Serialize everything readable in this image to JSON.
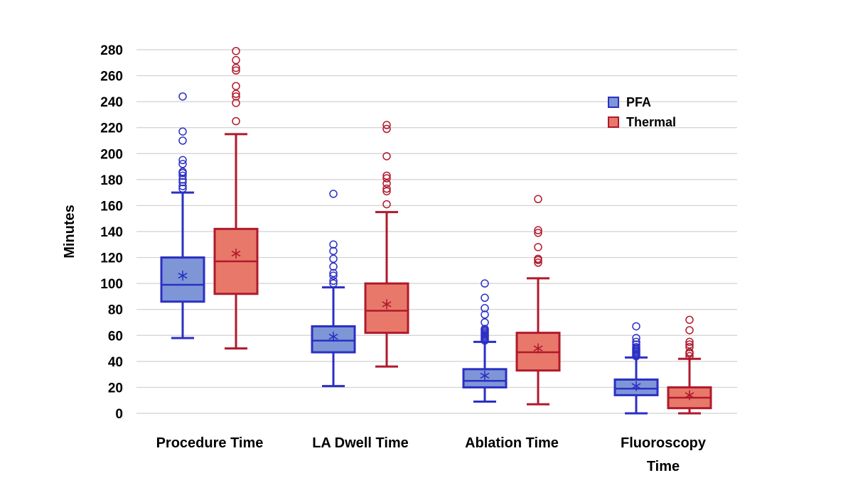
{
  "chart_data": {
    "type": "box",
    "title": "",
    "xlabel": "",
    "ylabel": "Minutes",
    "ylim": [
      0,
      280
    ],
    "yticks": [
      0,
      20,
      40,
      60,
      80,
      100,
      120,
      140,
      160,
      180,
      200,
      220,
      240,
      260,
      280
    ],
    "grid": true,
    "legend_position": "top-right",
    "categories": [
      [
        "Procedure Time"
      ],
      [
        "LA Dwell Time"
      ],
      [
        "Ablation Time"
      ],
      [
        "Fluoroscopy",
        "Time"
      ]
    ],
    "series": [
      {
        "name": "PFA",
        "color_fill": "#7f96d6",
        "color_line": "#2b2fc4",
        "boxes": [
          {
            "min": 58,
            "q1": 86,
            "median": 99,
            "q3": 120,
            "max": 170,
            "mean": 106,
            "outliers": [
              173,
              175,
              178,
              180,
              183,
              185,
              186,
              192,
              195,
              210,
              217,
              244
            ]
          },
          {
            "min": 21,
            "q1": 47,
            "median": 56,
            "q3": 67,
            "max": 97,
            "mean": 59,
            "outliers": [
              100,
              102,
              106,
              108,
              113,
              119,
              125,
              130,
              169
            ]
          },
          {
            "min": 9,
            "q1": 20,
            "median": 25,
            "q3": 34,
            "max": 55,
            "mean": 29,
            "outliers": [
              56,
              57,
              58,
              59,
              60,
              61,
              62,
              63,
              64,
              65,
              70,
              76,
              81,
              89,
              100
            ]
          },
          {
            "min": 0,
            "q1": 14,
            "median": 19,
            "q3": 26,
            "max": 43,
            "mean": 21,
            "outliers": [
              44,
              45,
              46,
              47,
              48,
              49,
              50,
              51,
              53,
              55,
              58,
              67
            ]
          }
        ]
      },
      {
        "name": "Thermal",
        "color_fill": "#e8796a",
        "color_line": "#b0192c",
        "boxes": [
          {
            "min": 50,
            "q1": 92,
            "median": 117,
            "q3": 142,
            "max": 215,
            "mean": 123,
            "outliers": [
              225,
              239,
              244,
              246,
              252,
              264,
              266,
              272,
              279
            ]
          },
          {
            "min": 36,
            "q1": 62,
            "median": 79,
            "q3": 100,
            "max": 155,
            "mean": 84,
            "outliers": [
              161,
              171,
              173,
              177,
              181,
              183,
              198,
              219,
              222
            ]
          },
          {
            "min": 7,
            "q1": 33,
            "median": 47,
            "q3": 62,
            "max": 104,
            "mean": 50,
            "outliers": [
              116,
              118,
              119,
              128,
              139,
              141,
              165
            ]
          },
          {
            "min": 0,
            "q1": 4,
            "median": 12,
            "q3": 20,
            "max": 42,
            "mean": 14,
            "outliers": [
              44,
              46,
              47,
              51,
              53,
              55,
              64,
              72
            ]
          }
        ]
      }
    ]
  }
}
